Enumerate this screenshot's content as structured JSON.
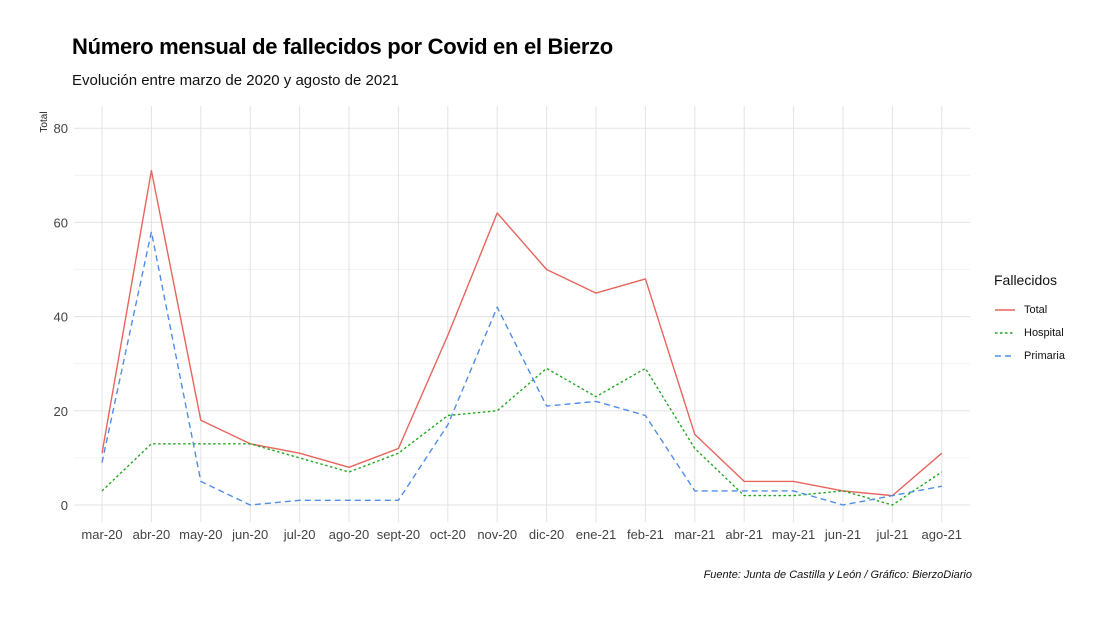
{
  "header": {
    "title": "Número mensual de fallecidos por Covid en el Bierzo",
    "subtitle": "Evolución entre marzo de 2020 y agosto de 2021"
  },
  "caption": "Fuente: Junta de Castilla y León / Gráfico: BierzoDiario",
  "legend": {
    "title": "Fallecidos"
  },
  "chart_data": {
    "type": "line",
    "title": "Número mensual de fallecidos por Covid en el Bierzo",
    "subtitle": "Evolución entre marzo de 2020 y agosto de 2021",
    "xlabel": "",
    "ylabel": "Total",
    "ylim": [
      0,
      80
    ],
    "yticks": [
      0,
      20,
      40,
      60,
      80
    ],
    "grid": true,
    "legend_position": "right",
    "categories": [
      "mar-20",
      "abr-20",
      "may-20",
      "jun-20",
      "jul-20",
      "ago-20",
      "sept-20",
      "oct-20",
      "nov-20",
      "dic-20",
      "ene-21",
      "feb-21",
      "mar-21",
      "abr-21",
      "may-21",
      "jun-21",
      "jul-21",
      "ago-21"
    ],
    "series": [
      {
        "name": "Total",
        "color": "#e8655d",
        "dash": "solid",
        "values": [
          11,
          71,
          18,
          13,
          11,
          8,
          12,
          36,
          62,
          50,
          45,
          48,
          15,
          5,
          5,
          3,
          2,
          11
        ]
      },
      {
        "name": "Hospital",
        "color": "#1fa81f",
        "dash": "dotted",
        "values": [
          3,
          13,
          13,
          13,
          10,
          7,
          11,
          19,
          20,
          29,
          23,
          29,
          12,
          2,
          2,
          3,
          0,
          7
        ]
      },
      {
        "name": "Primaria",
        "color": "#4f8de6",
        "dash": "dashed",
        "values": [
          9,
          58,
          5,
          0,
          1,
          1,
          1,
          17,
          42,
          21,
          22,
          19,
          3,
          3,
          3,
          0,
          2,
          4
        ]
      }
    ]
  }
}
